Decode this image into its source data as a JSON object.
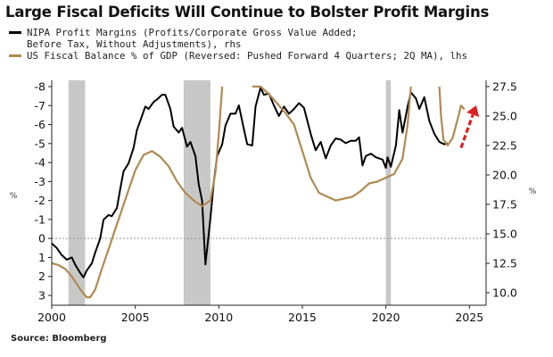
{
  "title": "Large Fiscal Deficits Will Continue to Bolster Profit Margins",
  "legend": {
    "series1_line1": "NIPA Profit Margins (Profits/Corporate Gross Value Added;",
    "series1_line2": "Before Tax, Without Adjustments), rhs",
    "series2": "US Fiscal Balance % of GDP (Reversed: Pushed Forward 4 Quarters; 2Q MA), lhs"
  },
  "source": "Source: Bloomberg",
  "chart_data": {
    "type": "line",
    "x_ticks": [
      "2000",
      "2005",
      "2010",
      "2015",
      "2020",
      "2025"
    ],
    "left_axis": {
      "ticks": [
        "-8",
        "-7",
        "-6",
        "-5",
        "-4",
        "-3",
        "-2",
        "-1",
        "0",
        "1",
        "2",
        "3"
      ],
      "range": [
        -8,
        3
      ],
      "reversed": true,
      "unit": "%"
    },
    "right_axis": {
      "ticks": [
        "27.5",
        "25.0",
        "22.5",
        "20.0",
        "17.5",
        "15.0",
        "12.5",
        "10.0"
      ],
      "range": [
        10,
        27.5
      ],
      "unit": "%"
    },
    "shaded_periods": [
      [
        2001.0,
        2002.0
      ],
      [
        2007.9,
        2009.5
      ],
      [
        2020.0,
        2020.3
      ]
    ],
    "zero_line": {
      "value": 0,
      "style": "dotted"
    },
    "series": [
      {
        "axis": "right",
        "color": "#000000",
        "points": [
          [
            2000.0,
            14.2
          ],
          [
            2000.3,
            13.8
          ],
          [
            2000.6,
            13.2
          ],
          [
            2000.9,
            12.8
          ],
          [
            2001.2,
            13.0
          ],
          [
            2001.4,
            12.4
          ],
          [
            2001.7,
            11.7
          ],
          [
            2001.9,
            11.3
          ],
          [
            2002.1,
            11.9
          ],
          [
            2002.4,
            12.5
          ],
          [
            2002.6,
            13.4
          ],
          [
            2002.9,
            14.6
          ],
          [
            2003.1,
            16.2
          ],
          [
            2003.4,
            16.6
          ],
          [
            2003.6,
            16.5
          ],
          [
            2003.9,
            17.2
          ],
          [
            2004.1,
            18.8
          ],
          [
            2004.3,
            20.3
          ],
          [
            2004.6,
            21.0
          ],
          [
            2004.9,
            22.3
          ],
          [
            2005.1,
            23.8
          ],
          [
            2005.3,
            24.6
          ],
          [
            2005.6,
            25.8
          ],
          [
            2005.8,
            25.6
          ],
          [
            2006.1,
            26.2
          ],
          [
            2006.3,
            26.4
          ],
          [
            2006.6,
            26.8
          ],
          [
            2006.8,
            26.8
          ],
          [
            2007.1,
            25.6
          ],
          [
            2007.3,
            24.1
          ],
          [
            2007.6,
            23.6
          ],
          [
            2007.8,
            24.0
          ],
          [
            2008.1,
            22.4
          ],
          [
            2008.3,
            22.8
          ],
          [
            2008.6,
            21.6
          ],
          [
            2008.8,
            19.2
          ],
          [
            2009.0,
            17.8
          ],
          [
            2009.2,
            12.4
          ],
          [
            2009.5,
            16.3
          ],
          [
            2009.7,
            19.4
          ],
          [
            2009.9,
            21.6
          ],
          [
            2010.2,
            22.6
          ],
          [
            2010.4,
            24.2
          ],
          [
            2010.7,
            25.2
          ],
          [
            2011.0,
            25.2
          ],
          [
            2011.2,
            25.9
          ],
          [
            2011.5,
            23.9
          ],
          [
            2011.7,
            22.6
          ],
          [
            2012.0,
            22.5
          ],
          [
            2012.2,
            25.8
          ],
          [
            2012.5,
            27.4
          ],
          [
            2012.7,
            26.8
          ],
          [
            2013.0,
            26.9
          ],
          [
            2013.3,
            25.9
          ],
          [
            2013.6,
            25.0
          ],
          [
            2013.9,
            25.8
          ],
          [
            2014.2,
            25.2
          ],
          [
            2014.5,
            25.6
          ],
          [
            2014.8,
            26.1
          ],
          [
            2015.1,
            25.7
          ],
          [
            2015.5,
            23.5
          ],
          [
            2015.8,
            22.1
          ],
          [
            2016.1,
            22.8
          ],
          [
            2016.4,
            21.4
          ],
          [
            2016.7,
            22.5
          ],
          [
            2017.0,
            23.1
          ],
          [
            2017.3,
            23.0
          ],
          [
            2017.6,
            22.7
          ],
          [
            2017.9,
            22.9
          ],
          [
            2018.2,
            22.9
          ],
          [
            2018.4,
            23.2
          ],
          [
            2018.6,
            20.8
          ],
          [
            2018.8,
            21.6
          ],
          [
            2019.1,
            21.8
          ],
          [
            2019.4,
            21.5
          ],
          [
            2019.8,
            21.3
          ],
          [
            2020.0,
            20.6
          ],
          [
            2020.1,
            21.5
          ],
          [
            2020.3,
            20.7
          ],
          [
            2020.6,
            22.5
          ],
          [
            2020.8,
            25.5
          ],
          [
            2021.0,
            23.6
          ],
          [
            2021.3,
            25.8
          ],
          [
            2021.5,
            27.0
          ],
          [
            2021.8,
            26.5
          ],
          [
            2022.0,
            25.6
          ],
          [
            2022.3,
            26.6
          ],
          [
            2022.6,
            24.6
          ],
          [
            2022.9,
            23.5
          ],
          [
            2023.2,
            22.8
          ],
          [
            2023.5,
            22.6
          ],
          [
            2023.7,
            22.7
          ]
        ]
      },
      {
        "axis": "left",
        "color": "#b08a52",
        "points": [
          [
            2000.0,
            1.3
          ],
          [
            2000.4,
            1.4
          ],
          [
            2000.8,
            1.6
          ],
          [
            2001.2,
            2.0
          ],
          [
            2001.5,
            2.4
          ],
          [
            2001.8,
            2.8
          ],
          [
            2002.1,
            3.1
          ],
          [
            2002.3,
            3.1
          ],
          [
            2002.6,
            2.7
          ],
          [
            2003.0,
            1.6
          ],
          [
            2003.5,
            0.3
          ],
          [
            2004.0,
            -1.0
          ],
          [
            2004.5,
            -2.3
          ],
          [
            2005.0,
            -3.6
          ],
          [
            2005.5,
            -4.4
          ],
          [
            2006.0,
            -4.6
          ],
          [
            2006.5,
            -4.3
          ],
          [
            2007.0,
            -3.8
          ],
          [
            2007.5,
            -3.0
          ],
          [
            2008.0,
            -2.4
          ],
          [
            2008.5,
            -2.0
          ],
          [
            2009.0,
            -1.7
          ],
          [
            2009.5,
            -2.0
          ],
          [
            2009.8,
            -3.5
          ],
          [
            2010.0,
            -5.5
          ],
          [
            2010.2,
            -8.0
          ]
        ]
      },
      {
        "axis": "left",
        "color": "#b08a52",
        "points": [
          [
            2012.0,
            -8.0
          ],
          [
            2012.5,
            -8.0
          ],
          [
            2013.0,
            -7.6
          ],
          [
            2013.5,
            -7.1
          ],
          [
            2014.0,
            -6.6
          ],
          [
            2014.5,
            -6.0
          ],
          [
            2015.0,
            -4.6
          ],
          [
            2015.5,
            -3.2
          ],
          [
            2016.0,
            -2.4
          ],
          [
            2016.5,
            -2.2
          ],
          [
            2017.0,
            -2.0
          ],
          [
            2017.5,
            -2.1
          ],
          [
            2018.0,
            -2.2
          ],
          [
            2018.5,
            -2.5
          ],
          [
            2019.0,
            -2.9
          ],
          [
            2019.5,
            -3.0
          ],
          [
            2020.0,
            -3.2
          ],
          [
            2020.5,
            -3.4
          ],
          [
            2021.0,
            -4.2
          ],
          [
            2021.3,
            -6.0
          ],
          [
            2021.5,
            -8.0
          ]
        ]
      },
      {
        "axis": "left",
        "color": "#b08a52",
        "points": [
          [
            2023.2,
            -8.0
          ],
          [
            2023.3,
            -6.5
          ],
          [
            2023.45,
            -5.2
          ],
          [
            2023.7,
            -4.9
          ],
          [
            2024.0,
            -5.3
          ],
          [
            2024.3,
            -6.3
          ],
          [
            2024.5,
            -7.0
          ],
          [
            2024.7,
            -6.8
          ]
        ]
      }
    ],
    "annotation": {
      "type": "arrow",
      "color": "#e02020",
      "from": [
        2024.5,
        22.3
      ],
      "to": [
        2025.4,
        25.9
      ]
    }
  }
}
